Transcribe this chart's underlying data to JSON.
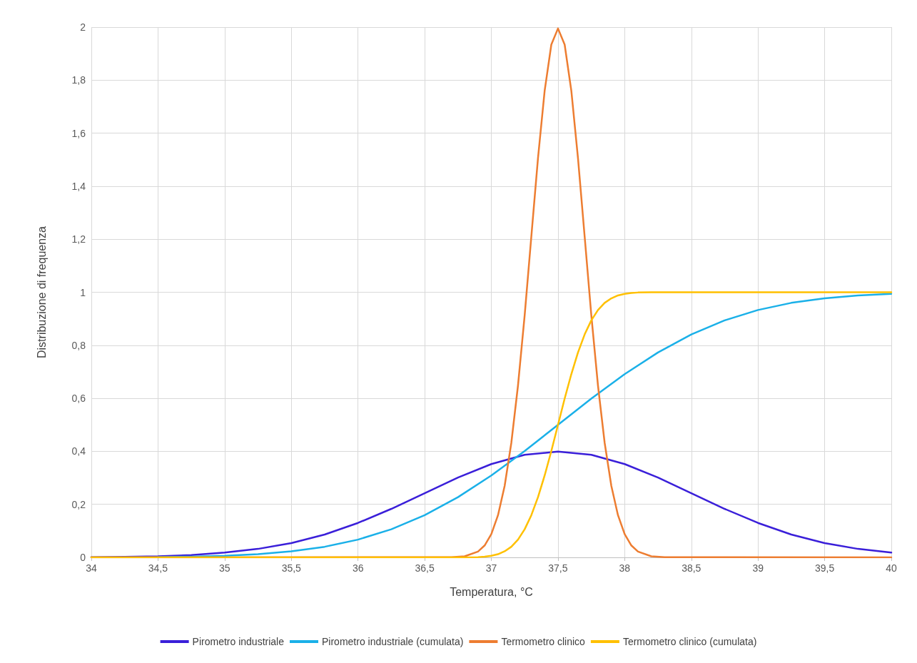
{
  "chart_data": {
    "type": "line",
    "xlabel": "Temperatura, °C",
    "ylabel": "Distribuzione di frequenza",
    "xlim": [
      34,
      40
    ],
    "ylim": [
      0,
      2
    ],
    "xticks": [
      34,
      {
        "value": 34.5,
        "label": "34,5"
      },
      35,
      {
        "value": 35.5,
        "label": "35,5"
      },
      36,
      {
        "value": 36.5,
        "label": "36,5"
      },
      37,
      {
        "value": 37.5,
        "label": "37,5"
      },
      38,
      {
        "value": 38.5,
        "label": "38,5"
      },
      39,
      {
        "value": 39.5,
        "label": "39,5"
      },
      40
    ],
    "yticks": [
      0,
      {
        "value": 0.2,
        "label": "0,2"
      },
      {
        "value": 0.4,
        "label": "0,4"
      },
      {
        "value": 0.6,
        "label": "0,6"
      },
      {
        "value": 0.8,
        "label": "0,8"
      },
      1,
      {
        "value": 1.2,
        "label": "1,2"
      },
      {
        "value": 1.4,
        "label": "1,4"
      },
      {
        "value": 1.6,
        "label": "1,6"
      },
      {
        "value": 1.8,
        "label": "1,8"
      },
      2
    ],
    "grid": true,
    "legend": "bottom",
    "marker": "none",
    "line_style": "solid",
    "series": [
      {
        "name": "Pirometro industriale",
        "color": "#3a1fd9",
        "x": [
          34,
          34.25,
          34.5,
          34.75,
          35,
          35.25,
          35.5,
          35.75,
          36,
          36.25,
          36.5,
          36.75,
          37,
          37.25,
          37.5,
          37.75,
          38,
          38.25,
          38.5,
          38.75,
          39,
          39.25,
          39.5,
          39.75,
          40
        ],
        "values": [
          0.001,
          0.002,
          0.004,
          0.009,
          0.018,
          0.032,
          0.054,
          0.086,
          0.13,
          0.183,
          0.242,
          0.301,
          0.352,
          0.387,
          0.399,
          0.387,
          0.352,
          0.301,
          0.242,
          0.183,
          0.13,
          0.086,
          0.054,
          0.032,
          0.018
        ]
      },
      {
        "name": "Pirometro industriale (cumulata)",
        "color": "#1ab0e8",
        "x": [
          34.5,
          34.75,
          35,
          35.25,
          35.5,
          35.75,
          36,
          36.25,
          36.5,
          36.75,
          37,
          37.25,
          37.5,
          37.75,
          38,
          38.25,
          38.5,
          38.75,
          39,
          39.25,
          39.5,
          39.75,
          40
        ],
        "values": [
          0.001,
          0.003,
          0.006,
          0.012,
          0.023,
          0.04,
          0.067,
          0.106,
          0.159,
          0.227,
          0.309,
          0.401,
          0.5,
          0.599,
          0.691,
          0.773,
          0.841,
          0.894,
          0.933,
          0.96,
          0.977,
          0.988,
          0.994
        ]
      },
      {
        "name": "Termometro clinico",
        "color": "#ed7d31",
        "x": [
          34,
          36.7,
          36.8,
          36.9,
          36.95,
          37,
          37.05,
          37.1,
          37.15,
          37.2,
          37.25,
          37.3,
          37.35,
          37.4,
          37.45,
          37.5,
          37.55,
          37.6,
          37.65,
          37.7,
          37.75,
          37.8,
          37.85,
          37.9,
          37.95,
          38,
          38.05,
          38.1,
          38.2,
          38.3,
          40
        ],
        "values": [
          0,
          0.001,
          0.004,
          0.022,
          0.045,
          0.088,
          0.159,
          0.27,
          0.432,
          0.648,
          0.913,
          1.21,
          1.506,
          1.76,
          1.934,
          1.995,
          1.934,
          1.76,
          1.506,
          1.21,
          0.913,
          0.648,
          0.432,
          0.27,
          0.159,
          0.088,
          0.045,
          0.022,
          0.004,
          0.001,
          0
        ]
      },
      {
        "name": "Termometro clinico (cumulata)",
        "color": "#ffc000",
        "x": [
          34,
          36.7,
          36.8,
          36.9,
          36.95,
          37,
          37.05,
          37.1,
          37.15,
          37.2,
          37.25,
          37.3,
          37.35,
          37.4,
          37.45,
          37.5,
          37.55,
          37.6,
          37.65,
          37.7,
          37.75,
          37.8,
          37.85,
          37.9,
          37.95,
          38,
          38.05,
          38.1,
          38.2,
          38.3,
          40
        ],
        "values": [
          0,
          0,
          0,
          0.001,
          0.003,
          0.006,
          0.012,
          0.023,
          0.04,
          0.067,
          0.106,
          0.159,
          0.227,
          0.309,
          0.401,
          0.5,
          0.599,
          0.691,
          0.773,
          0.841,
          0.894,
          0.933,
          0.96,
          0.977,
          0.988,
          0.994,
          0.997,
          0.999,
          1,
          1,
          1
        ]
      }
    ]
  }
}
